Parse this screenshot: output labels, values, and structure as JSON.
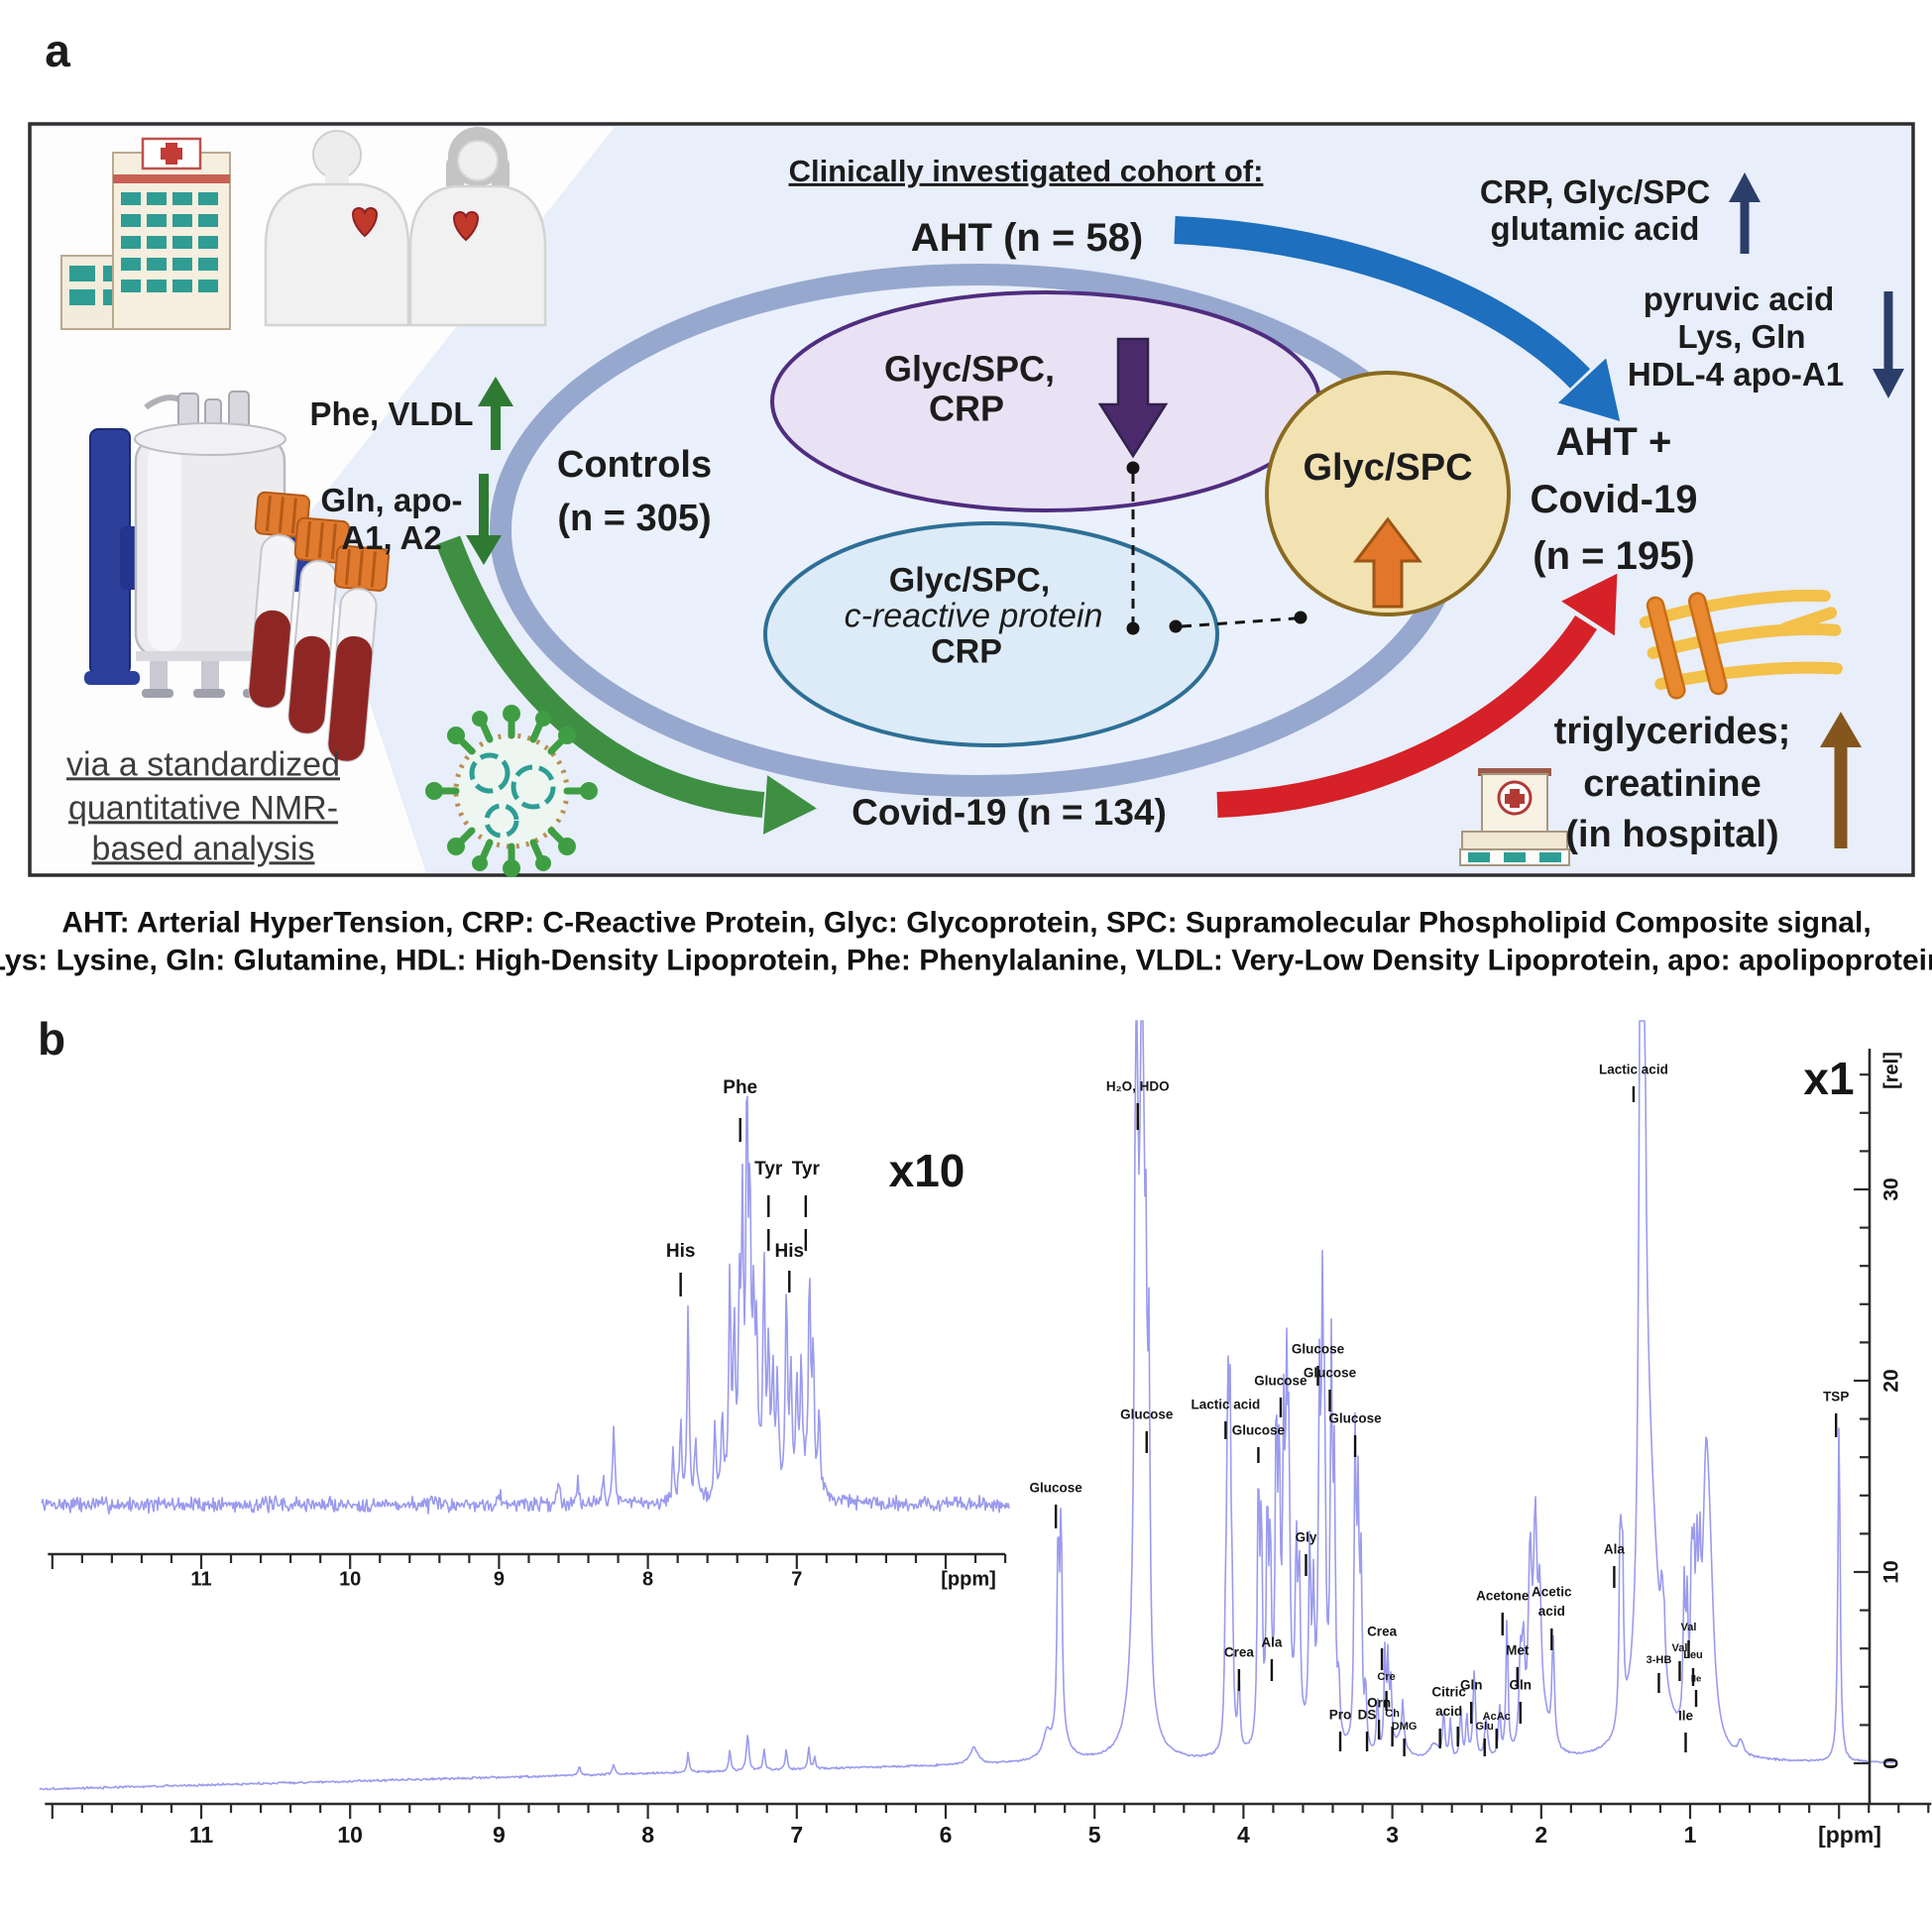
{
  "panel_a": {
    "label": "a",
    "title": "Clinically investigated cohort of:",
    "aht": "AHT (n = 58)",
    "crp_up1": "CRP, Glyc/SPC",
    "crp_up2": "glutamic acid",
    "pyr1": "pyruvic acid",
    "pyr2": "Lys, Gln",
    "pyr3": "HDL-4 apo-A1",
    "controls1": "Controls",
    "controls2": "(n = 305)",
    "purple1": "Glyc/SPC,",
    "purple2": "CRP",
    "blue1": "Glyc/SPC,",
    "blue2": "c-reactive protein",
    "blue3": "CRP",
    "tan": "Glyc/SPC",
    "ac1": "AHT +",
    "ac2": "Covid-19",
    "ac3": "(n = 195)",
    "phe_vldl": "Phe, VLDL",
    "gln1": "Gln, apo-",
    "gln2": "A1, A2",
    "via1": "via a standardized",
    "via2": "quantitative NMR-",
    "via3": "based analysis",
    "covid": "Covid-19 (n = 134)",
    "tri1": "triglycerides;",
    "tri2": "creatinine",
    "tri3": "(in hospital)",
    "icons": {
      "hospital": "hospital-building-icon",
      "patients": "patient-figures-icon",
      "nmr": "nmr-spectrometer-icon",
      "tubes": "blood-tubes-icon",
      "virus": "coronavirus-icon",
      "triglyceride": "triglyceride-molecule-icon",
      "hospital_small": "hospital-small-icon"
    },
    "colors": {
      "bg": "#e8eefa",
      "ring": "#97a8cf",
      "purple": "#4f2d7f",
      "blue_ellipse": "#2e6f96",
      "tan": "#8a6a20",
      "arrow_blue": "#1e6fbe",
      "arrow_green": "#3f8f43",
      "arrow_red": "#d62128",
      "arrow_navy": "#2b3e69",
      "arrow_brown": "#84561e",
      "arrow_purple": "#4a2a6b",
      "arrow_orange": "#e2762b"
    }
  },
  "caption": {
    "line1": "AHT: Arterial HyperTension, CRP: C-Reactive Protein, Glyc: Glycoprotein, SPC: Supramolecular Phospholipid Composite signal,",
    "line2": "Lys: Lysine, Gln: Glutamine, HDL: High-Density Lipoprotein, Phe: Phenylalanine, VLDL: Very-Low Density Lipoprotein, apo: apolipoprotein"
  },
  "panel_b": {
    "label": "b"
  },
  "chart_data": {
    "type": "line",
    "line_color": "#9b9bef",
    "axis_color": "#2b2b2b",
    "x_unit": "[ppm]",
    "y_unit": "[rel]",
    "main": {
      "scale_label": "x1",
      "x_ticks": [
        11,
        10,
        9,
        8,
        7,
        6,
        5,
        4,
        3,
        2,
        1
      ],
      "y_ticks": [
        0,
        10,
        20,
        30
      ],
      "x_range": [
        12.05,
        -0.62
      ],
      "peaks": [
        [
          8.46,
          0.5
        ],
        [
          8.23,
          0.55
        ],
        [
          7.73,
          1.0
        ],
        [
          7.45,
          1.1
        ],
        [
          7.33,
          1.9,
          0.01
        ],
        [
          7.22,
          1.1
        ],
        [
          7.07,
          1.0
        ],
        [
          6.92,
          1.1
        ],
        [
          6.88,
          0.6
        ],
        [
          5.81,
          0.9,
          0.03
        ],
        [
          5.32,
          1.2,
          0.03
        ],
        [
          5.245,
          9.8
        ],
        [
          5.225,
          10.8
        ],
        [
          5.23,
          1.6,
          0.05
        ],
        [
          4.72,
          38,
          0.01
        ],
        [
          4.68,
          40,
          0.012
        ],
        [
          4.7,
          12,
          0.04
        ],
        [
          4.655,
          15
        ],
        [
          4.635,
          16.2
        ],
        [
          4.12,
          5.5
        ],
        [
          4.105,
          16.5
        ],
        [
          4.09,
          15.5
        ],
        [
          4.075,
          5.5
        ],
        [
          4.03,
          3.8
        ],
        [
          3.9,
          13.5
        ],
        [
          3.88,
          11
        ],
        [
          3.84,
          11.5
        ],
        [
          3.82,
          9.5
        ],
        [
          3.78,
          15.5
        ],
        [
          3.76,
          13
        ],
        [
          3.73,
          14
        ],
        [
          3.71,
          15
        ],
        [
          3.695,
          12
        ],
        [
          3.645,
          9
        ],
        [
          3.625,
          8
        ],
        [
          3.555,
          9.8
        ],
        [
          3.53,
          7
        ],
        [
          3.49,
          16.5
        ],
        [
          3.47,
          19
        ],
        [
          3.455,
          13
        ],
        [
          3.41,
          18.8
        ],
        [
          3.39,
          13
        ],
        [
          3.25,
          15.8
        ],
        [
          3.23,
          12
        ],
        [
          3.21,
          9
        ],
        [
          3.7,
          2,
          0.1
        ],
        [
          3.45,
          1.5,
          0.07
        ],
        [
          3.36,
          2.8
        ],
        [
          3.18,
          3.2
        ],
        [
          3.1,
          3.0
        ],
        [
          3.05,
          5.2,
          0.007
        ],
        [
          3.03,
          4.6,
          0.007
        ],
        [
          3.01,
          3.4
        ],
        [
          2.93,
          2.2
        ],
        [
          2.95,
          1.0,
          0.05
        ],
        [
          2.72,
          0.8,
          0.04
        ],
        [
          2.655,
          2.4
        ],
        [
          2.61,
          2.0
        ],
        [
          2.54,
          2.6
        ],
        [
          2.5,
          2.2
        ],
        [
          2.45,
          4.6,
          0.01
        ],
        [
          2.37,
          2.0,
          0.012
        ],
        [
          2.28,
          2.6
        ],
        [
          2.23,
          7.2
        ],
        [
          2.14,
          4.4,
          0.011
        ],
        [
          2.12,
          4.8,
          0.011
        ],
        [
          2.075,
          9.5,
          0.014
        ],
        [
          2.04,
          10.5,
          0.014
        ],
        [
          2.01,
          6,
          0.012
        ],
        [
          1.99,
          2,
          0.05
        ],
        [
          1.92,
          5.5,
          0.01
        ],
        [
          1.47,
          9.8
        ],
        [
          1.455,
          8.5
        ],
        [
          1.33,
          46,
          0.011
        ],
        [
          1.315,
          42,
          0.011
        ],
        [
          1.295,
          12,
          0.05
        ],
        [
          1.25,
          6,
          0.07
        ],
        [
          1.19,
          3.2
        ],
        [
          1.175,
          2.8
        ],
        [
          1.04,
          7.2
        ],
        [
          1.02,
          6
        ],
        [
          0.99,
          8.0
        ],
        [
          0.975,
          7
        ],
        [
          0.955,
          7.4
        ],
        [
          0.935,
          6.4
        ],
        [
          0.895,
          10.5,
          0.025
        ],
        [
          0.87,
          8,
          0.035
        ],
        [
          0.66,
          0.7,
          0.02
        ],
        [
          0.0,
          17.8,
          0.009
        ]
      ],
      "labels": [
        {
          "t": [
            "Glucose"
          ],
          "ppm": 5.26,
          "y": 1502,
          "s": 0,
          "k": [
            [
              1518,
              1542
            ]
          ]
        },
        {
          "t": [
            "H₂O, HDO"
          ],
          "ppm": 4.71,
          "y": 1097,
          "s": 0,
          "k": [
            [
              1113,
              1140
            ]
          ]
        },
        {
          "t": [
            "Glucose"
          ],
          "ppm": 4.65,
          "y": 1428,
          "s": 0,
          "k": [
            [
              1444,
              1466
            ]
          ]
        },
        {
          "t": [
            "Lactic acid"
          ],
          "ppm": 4.12,
          "y": 1418,
          "s": 0,
          "k": [
            [
              1434,
              1452
            ]
          ]
        },
        {
          "t": [
            "Glucose"
          ],
          "ppm": 3.9,
          "y": 1444,
          "s": 0,
          "k": [
            [
              1460,
              1476
            ]
          ]
        },
        {
          "t": [
            "Glucose"
          ],
          "ppm": 3.75,
          "y": 1394,
          "s": 0,
          "k": [
            [
              1410,
              1430
            ]
          ]
        },
        {
          "t": [
            "Glucose"
          ],
          "ppm": 3.5,
          "y": 1362,
          "s": 0,
          "k": [
            [
              1378,
              1398
            ]
          ]
        },
        {
          "t": [
            "Glucose"
          ],
          "ppm": 3.42,
          "y": 1386,
          "s": 0,
          "k": [
            [
              1402,
              1424
            ]
          ]
        },
        {
          "t": [
            "Glucose"
          ],
          "ppm": 3.25,
          "y": 1432,
          "s": 0,
          "k": [
            [
              1448,
              1470
            ]
          ]
        },
        {
          "t": [
            "Gly"
          ],
          "ppm": 3.58,
          "y": 1552,
          "s": 0,
          "k": [
            [
              1568,
              1590
            ]
          ]
        },
        {
          "t": [
            "Ala"
          ],
          "ppm": 3.81,
          "y": 1658,
          "s": 0,
          "k": [
            [
              1674,
              1696
            ]
          ]
        },
        {
          "t": [
            "Crea"
          ],
          "ppm": 4.03,
          "y": 1668,
          "s": 0,
          "k": [
            [
              1684,
              1706
            ]
          ]
        },
        {
          "t": [
            "Pro"
          ],
          "ppm": 3.35,
          "y": 1731,
          "s": 0,
          "k": [
            [
              1747,
              1767
            ]
          ]
        },
        {
          "t": [
            "DS"
          ],
          "ppm": 3.17,
          "y": 1731,
          "s": 0,
          "k": [
            [
              1747,
              1767
            ]
          ]
        },
        {
          "t": [
            "Orn"
          ],
          "ppm": 3.09,
          "y": 1719,
          "s": 0,
          "k": [
            [
              1735,
              1755
            ]
          ]
        },
        {
          "t": [
            "Cre"
          ],
          "ppm": 3.04,
          "y": 1692,
          "s": 1,
          "k": [
            [
              1706,
              1726
            ]
          ]
        },
        {
          "t": [
            "Ch"
          ],
          "ppm": 3.0,
          "y": 1729,
          "s": 1,
          "k": [
            [
              1742,
              1762
            ]
          ]
        },
        {
          "t": [
            "DMG"
          ],
          "ppm": 2.92,
          "y": 1742,
          "s": 1,
          "k": [
            [
              1754,
              1772
            ]
          ]
        },
        {
          "t": [
            "Citric",
            "acid"
          ],
          "ppm": 2.62,
          "y": 1708,
          "s": 0,
          "k": [
            [
              1744,
              1764,
              -9
            ],
            [
              1742,
              1762,
              9
            ]
          ]
        },
        {
          "t": [
            "Gln"
          ],
          "ppm": 2.47,
          "y": 1701,
          "s": 0,
          "k": [
            [
              1717,
              1739
            ]
          ]
        },
        {
          "t": [
            "Glu"
          ],
          "ppm": 2.38,
          "y": 1742,
          "s": 1,
          "k": [
            [
              1754,
              1772
            ]
          ]
        },
        {
          "t": [
            "AcAc"
          ],
          "ppm": 2.3,
          "y": 1732,
          "s": 1,
          "k": [
            [
              1744,
              1764
            ]
          ]
        },
        {
          "t": [
            "Acetone"
          ],
          "ppm": 2.26,
          "y": 1611,
          "s": 0,
          "k": [
            [
              1627,
              1650
            ]
          ]
        },
        {
          "t": [
            "Met"
          ],
          "ppm": 2.16,
          "y": 1666,
          "s": 0,
          "k": [
            [
              1682,
              1704
            ]
          ]
        },
        {
          "t": [
            "Gln"
          ],
          "ppm": 2.14,
          "y": 1701,
          "s": 0,
          "k": [
            [
              1717,
              1739
            ]
          ]
        },
        {
          "t": [
            "Acetic",
            "acid"
          ],
          "ppm": 1.93,
          "y": 1607,
          "s": 0,
          "k": [
            [
              1643,
              1665
            ]
          ]
        },
        {
          "t": [
            "Crea"
          ],
          "ppm": 3.07,
          "y": 1647,
          "s": 0,
          "k": [
            [
              1663,
              1685
            ]
          ]
        },
        {
          "t": [
            "Ala"
          ],
          "ppm": 1.51,
          "y": 1564,
          "s": 0,
          "k": [
            [
              1580,
              1602
            ]
          ]
        },
        {
          "t": [
            "3-HB"
          ],
          "ppm": 1.21,
          "y": 1675,
          "s": 1,
          "k": [
            [
              1688,
              1708
            ]
          ]
        },
        {
          "t": [
            "Val"
          ],
          "ppm": 1.07,
          "y": 1663,
          "s": 1,
          "k": [
            [
              1676,
              1696
            ]
          ]
        },
        {
          "t": [
            "Val"
          ],
          "ppm": 1.01,
          "y": 1642,
          "s": 1,
          "k": [
            [
              1655,
              1673
            ]
          ]
        },
        {
          "t": [
            "Leu"
          ],
          "ppm": 0.98,
          "y": 1670,
          "s": 1,
          "k": [
            [
              1683,
              1701
            ]
          ]
        },
        {
          "t": [
            "Ile"
          ],
          "ppm": 0.96,
          "y": 1694,
          "s": 2,
          "k": [
            [
              1705,
              1722
            ]
          ]
        },
        {
          "t": [
            "Ile"
          ],
          "ppm": 1.03,
          "y": 1732,
          "s": 0,
          "k": [
            [
              1748,
              1768
            ]
          ]
        },
        {
          "t": [
            "TSP"
          ],
          "ppm": 0.02,
          "y": 1410,
          "s": 0,
          "k": [
            [
              1426,
              1450
            ]
          ]
        },
        {
          "t": [
            "Lactic acid"
          ],
          "ppm": 1.38,
          "y": 1080,
          "s": 0,
          "k": [
            [
              1096,
              1112
            ]
          ]
        }
      ]
    },
    "inset": {
      "scale_label": "x10",
      "x_ticks": [
        11,
        10,
        9,
        8,
        7
      ],
      "x_range": [
        12.03,
        5.6
      ],
      "peaks": [
        [
          9.0,
          0.8,
          0.01
        ],
        [
          8.6,
          1.2,
          0.01
        ],
        [
          8.47,
          1.5
        ],
        [
          8.3,
          1.6
        ],
        [
          8.23,
          4.2
        ],
        [
          7.83,
          2.5
        ],
        [
          7.78,
          4.0
        ],
        [
          7.73,
          9.8
        ],
        [
          7.68,
          3.0
        ],
        [
          7.55,
          3.5
        ],
        [
          7.5,
          4.0
        ],
        [
          7.45,
          11.3
        ],
        [
          7.42,
          8.0
        ],
        [
          7.385,
          9.0
        ],
        [
          7.365,
          13.0
        ],
        [
          7.335,
          18.6
        ],
        [
          7.315,
          13.0
        ],
        [
          7.29,
          8.0
        ],
        [
          7.27,
          7.0
        ],
        [
          7.22,
          11.1
        ],
        [
          7.19,
          7.0
        ],
        [
          7.16,
          6.0
        ],
        [
          7.13,
          5.5
        ],
        [
          7.07,
          10.2
        ],
        [
          7.04,
          6.0
        ],
        [
          7.0,
          5.0
        ],
        [
          6.97,
          6.0
        ],
        [
          6.915,
          10.8
        ],
        [
          6.89,
          7.0
        ],
        [
          6.85,
          4.0
        ],
        [
          7.3,
          1.5,
          0.12
        ],
        [
          6.95,
          1.0,
          0.1
        ]
      ],
      "labels": [
        {
          "t": [
            "Phe"
          ],
          "ppm": 7.38,
          "y": 1098,
          "s": 3,
          "k": [
            [
              1128,
              1152
            ]
          ]
        },
        {
          "t": [
            "Tyr"
          ],
          "ppm": 7.19,
          "y": 1180,
          "s": 3,
          "k": [
            [
              1206,
              1228
            ],
            [
              1240,
              1262
            ]
          ]
        },
        {
          "t": [
            "Tyr"
          ],
          "ppm": 6.94,
          "y": 1180,
          "s": 3,
          "k": [
            [
              1206,
              1228
            ],
            [
              1240,
              1262
            ]
          ]
        },
        {
          "t": [
            "His"
          ],
          "ppm": 7.78,
          "y": 1263,
          "s": 3,
          "k": [
            [
              1284,
              1308
            ]
          ]
        },
        {
          "t": [
            "His"
          ],
          "ppm": 7.05,
          "y": 1263,
          "s": 3,
          "k": [
            [
              1282,
              1304
            ]
          ]
        }
      ]
    }
  }
}
